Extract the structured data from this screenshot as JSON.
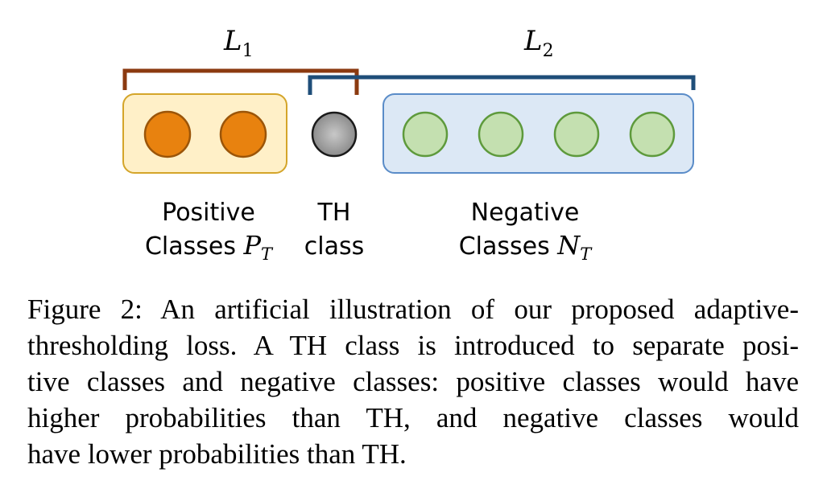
{
  "diagram": {
    "brackets": {
      "loss_1": {
        "label": "L",
        "subscript": "1",
        "color": "#8B3A10"
      },
      "loss_2": {
        "label": "L",
        "subscript": "2",
        "color": "#1F4E79"
      }
    },
    "groups": {
      "positive": {
        "label_line1": "Positive",
        "label_line2": "Classes",
        "math": "P",
        "math_sub": "T",
        "box_fill": "#FFF0C8",
        "box_stroke": "#D4A52A",
        "node_fill": "#E8820F",
        "node_stroke": "#9B5509",
        "count": 2
      },
      "threshold": {
        "label_line1": "TH",
        "label_line2": "class",
        "node_fill": "#A6A6A6",
        "node_stroke": "#1A1A1A"
      },
      "negative": {
        "label_line1": "Negative",
        "label_line2": "Classes",
        "math": "N",
        "math_sub": "T",
        "box_fill": "#DCE8F5",
        "box_stroke": "#5A8CC8",
        "node_fill": "#C4E0B0",
        "node_stroke": "#5E9A3C",
        "count": 4
      }
    }
  },
  "caption": {
    "lines": [
      "Figure 2: An artificial illustration of our proposed adaptive-",
      "thresholding loss. A TH class is introduced to separate posi-",
      "tive classes and negative classes: positive classes would have",
      "higher probabilities than TH, and negative classes would",
      "have lower probabilities than TH."
    ]
  }
}
